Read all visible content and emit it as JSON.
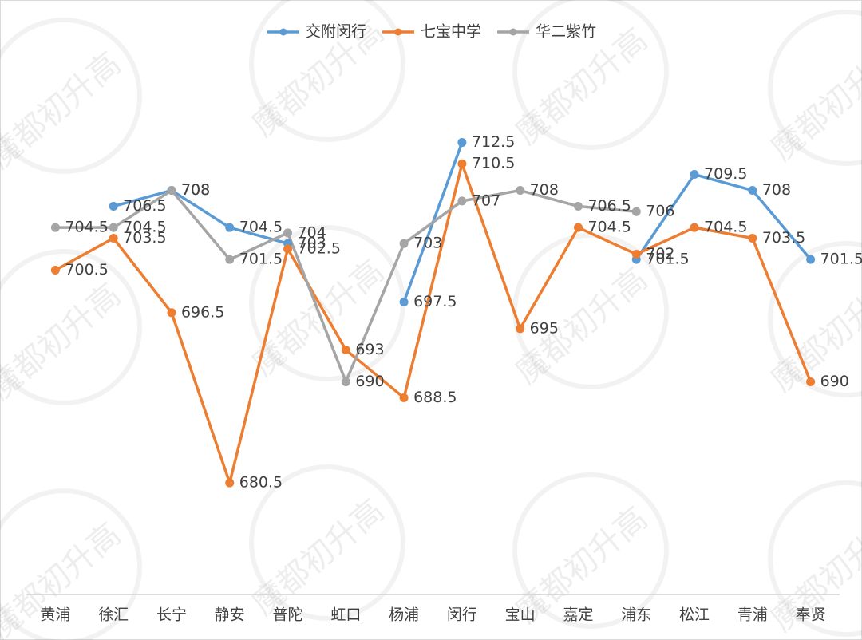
{
  "chart_data": {
    "type": "line",
    "watermark": "魔都初升高",
    "categories": [
      "黄浦",
      "徐汇",
      "长宁",
      "静安",
      "普陀",
      "虹口",
      "杨浦",
      "闵行",
      "宝山",
      "嘉定",
      "浦东",
      "松江",
      "青浦",
      "奉贤"
    ],
    "series": [
      {
        "name": "交附闵行",
        "color": "#5b9bd5",
        "values": [
          null,
          706.5,
          708,
          704.5,
          703,
          null,
          697.5,
          712.5,
          null,
          null,
          701.5,
          709.5,
          708,
          701.5
        ]
      },
      {
        "name": "七宝中学",
        "color": "#ed7d31",
        "values": [
          700.5,
          703.5,
          696.5,
          680.5,
          702.5,
          693,
          688.5,
          710.5,
          695,
          704.5,
          702,
          704.5,
          703.5,
          690
        ]
      },
      {
        "name": "华二紫竹",
        "color": "#a5a5a5",
        "values": [
          704.5,
          704.5,
          708,
          701.5,
          704,
          690,
          703,
          707,
          708,
          706.5,
          706,
          null,
          null,
          null
        ]
      }
    ],
    "ylim": [
      670,
      720
    ],
    "legend": "top"
  }
}
